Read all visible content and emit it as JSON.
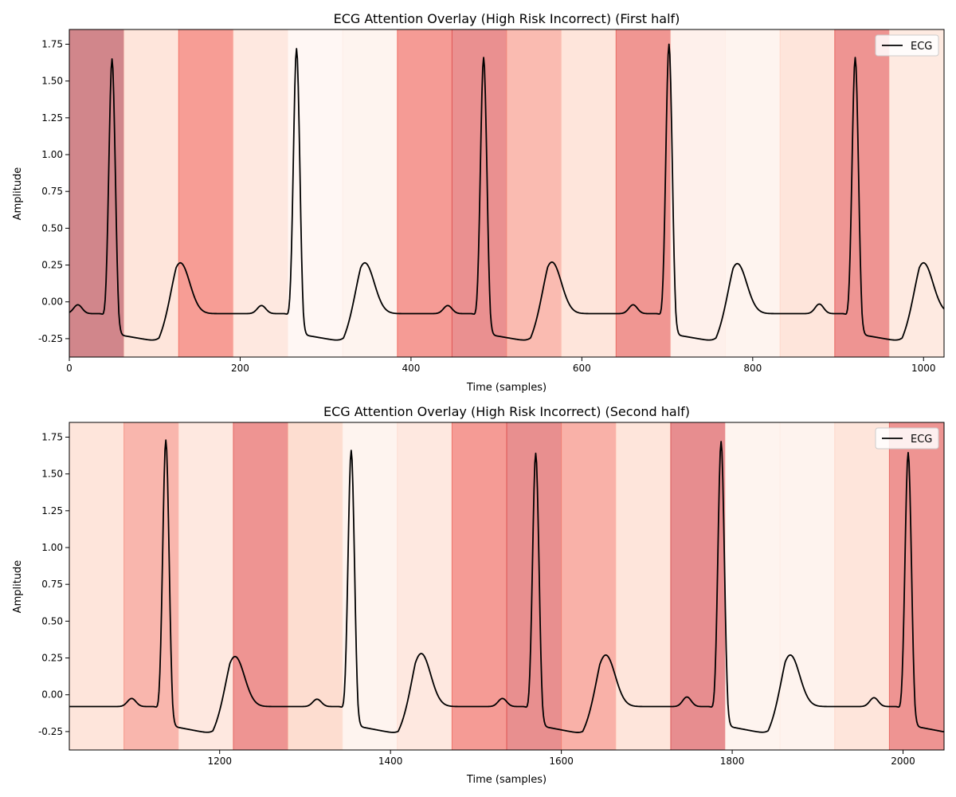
{
  "chart_data": [
    {
      "type": "line",
      "title": "ECG Attention Overlay (High Risk Incorrect) (First half)",
      "xlabel": "Time (samples)",
      "ylabel": "Amplitude",
      "xlim": [
        0,
        1024
      ],
      "ylim": [
        -0.375,
        1.85
      ],
      "xticks": [
        0,
        200,
        400,
        600,
        800,
        1000
      ],
      "yticks": [
        -0.25,
        0.0,
        0.25,
        0.5,
        0.75,
        1.0,
        1.25,
        1.5,
        1.75
      ],
      "legend": {
        "placement": "top-right",
        "entries": [
          {
            "label": "ECG",
            "color": "#000000"
          }
        ]
      },
      "line_color": "#000000",
      "attention_segments": {
        "width": 64,
        "start": 0,
        "weights": [
          0.85,
          0.18,
          0.5,
          0.15,
          0.02,
          0.05,
          0.52,
          0.68,
          0.38,
          0.18,
          0.6,
          0.08,
          0.05,
          0.18,
          0.62,
          0.14
        ]
      },
      "series": [
        {
          "name": "ECG",
          "r_peaks": [
            {
              "t": 50,
              "a": 1.65
            },
            {
              "t": 266,
              "a": 1.72
            },
            {
              "t": 485,
              "a": 1.66
            },
            {
              "t": 702,
              "a": 1.75
            },
            {
              "t": 920,
              "a": 1.66
            }
          ],
          "t_waves": [
            {
              "t": 130,
              "a": 0.105
            },
            {
              "t": 346,
              "a": 0.105
            },
            {
              "t": 565,
              "a": 0.11
            },
            {
              "t": 782,
              "a": 0.1
            },
            {
              "t": 1000,
              "a": 0.105
            }
          ],
          "p_waves": [
            {
              "t": 10,
              "a": -0.02
            },
            {
              "t": 225,
              "a": -0.025
            },
            {
              "t": 443,
              "a": -0.025
            },
            {
              "t": 660,
              "a": -0.02
            },
            {
              "t": 878,
              "a": -0.015
            }
          ],
          "baseline": -0.08,
          "post_qrs_level": -0.22,
          "trough_level": -0.27
        }
      ]
    },
    {
      "type": "line",
      "title": "ECG Attention Overlay (High Risk Incorrect) (Second half)",
      "xlabel": "Time (samples)",
      "ylabel": "Amplitude",
      "xlim": [
        1024,
        2048
      ],
      "ylim": [
        -0.375,
        1.85
      ],
      "xticks": [
        1200,
        1400,
        1600,
        1800,
        2000
      ],
      "yticks": [
        -0.25,
        0.0,
        0.25,
        0.5,
        0.75,
        1.0,
        1.25,
        1.5,
        1.75
      ],
      "legend": {
        "placement": "top-right",
        "entries": [
          {
            "label": "ECG",
            "color": "#000000"
          }
        ]
      },
      "line_color": "#000000",
      "attention_segments": {
        "width": 64,
        "start": 1024,
        "weights": [
          0.18,
          0.4,
          0.15,
          0.62,
          0.25,
          0.05,
          0.15,
          0.52,
          0.7,
          0.42,
          0.18,
          0.72,
          0.05,
          0.06,
          0.18,
          0.62
        ]
      },
      "series": [
        {
          "name": "ECG",
          "r_peaks": [
            {
              "t": 1137,
              "a": 1.73
            },
            {
              "t": 1354,
              "a": 1.66
            },
            {
              "t": 1570,
              "a": 1.64
            },
            {
              "t": 1787,
              "a": 1.72
            },
            {
              "t": 2006,
              "a": 1.645
            }
          ],
          "t_waves": [
            {
              "t": 1218,
              "a": 0.1
            },
            {
              "t": 1436,
              "a": 0.12
            },
            {
              "t": 1652,
              "a": 0.11
            },
            {
              "t": 1868,
              "a": 0.11
            }
          ],
          "p_waves": [
            {
              "t": 1097,
              "a": -0.025
            },
            {
              "t": 1314,
              "a": -0.03
            },
            {
              "t": 1531,
              "a": -0.025
            },
            {
              "t": 1747,
              "a": -0.015
            },
            {
              "t": 1966,
              "a": -0.02
            }
          ],
          "baseline": -0.08,
          "post_qrs_level": -0.21,
          "trough_level": -0.265
        }
      ]
    }
  ]
}
